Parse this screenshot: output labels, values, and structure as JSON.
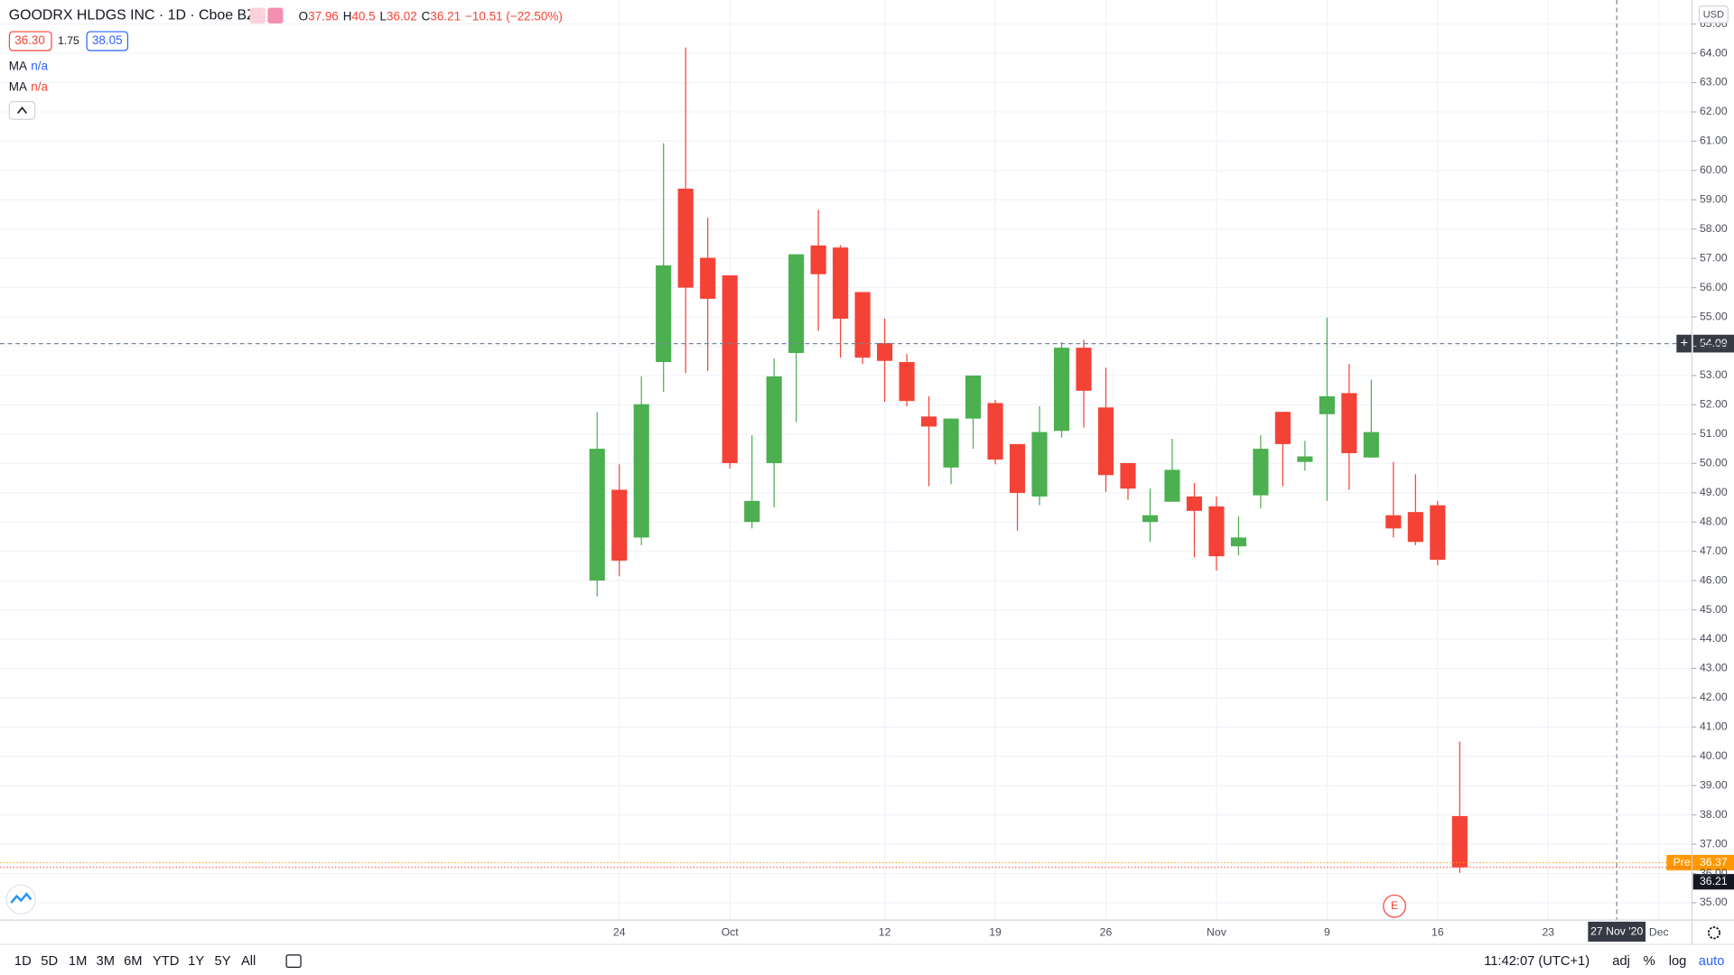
{
  "header": {
    "title": "GOODRX HLDGS INC · 1D · Cboe BZX",
    "ohlc_labels": [
      "O",
      "H",
      "L",
      "C"
    ],
    "change": "−10.51 (−22.50%)",
    "bid": "36.30",
    "spread": "1.75",
    "ask": "38.05",
    "indicators": [
      {
        "name": "MA",
        "value": "n/a"
      },
      {
        "name": "MA",
        "value": "n/a"
      }
    ]
  },
  "chart_data": {
    "type": "candlestick",
    "up_color": "#4caf50",
    "down_color": "#f44336",
    "grid": true,
    "categories": [
      null,
      "24",
      null,
      null,
      null,
      null,
      "Oct",
      null,
      null,
      null,
      null,
      null,
      null,
      "12",
      null,
      null,
      null,
      null,
      "19",
      null,
      null,
      null,
      null,
      "26",
      null,
      null,
      null,
      null,
      "Nov",
      null,
      null,
      null,
      null,
      "9",
      null,
      null,
      null,
      null,
      "16",
      null,
      null,
      null,
      null,
      "23",
      null,
      null,
      null,
      null,
      "Dec"
    ],
    "open": [
      46.0,
      49.1,
      47.47,
      53.46,
      59.38,
      57.02,
      56.42,
      48.0,
      50.01,
      53.77,
      57.44,
      57.37,
      55.85,
      54.11,
      53.46,
      51.6,
      49.86,
      51.53,
      52.06,
      50.66,
      48.87,
      51.11,
      53.95,
      51.91,
      50.01,
      48.0,
      48.69,
      48.87,
      48.53,
      47.17,
      48.91,
      51.76,
      50.05,
      51.68,
      52.4,
      50.2,
      48.23,
      48.34,
      48.57,
      37.96,
      null,
      null,
      null,
      null,
      null,
      null,
      null,
      null,
      null
    ],
    "high": [
      51.76,
      49.97,
      52.97,
      60.93,
      64.2,
      58.39,
      56.42,
      50.96,
      53.58,
      57.14,
      58.66,
      57.45,
      55.85,
      54.94,
      53.73,
      52.29,
      51.53,
      53.0,
      52.17,
      50.66,
      51.95,
      54.14,
      54.22,
      53.27,
      50.01,
      49.14,
      50.84,
      49.33,
      48.87,
      48.19,
      50.96,
      51.76,
      50.77,
      54.98,
      53.39,
      52.86,
      50.05,
      49.63,
      48.72,
      40.5,
      null,
      null,
      null,
      null,
      null,
      null,
      null,
      null,
      null
    ],
    "low": [
      45.46,
      46.15,
      47.21,
      52.44,
      53.08,
      53.16,
      49.82,
      47.78,
      48.5,
      51.41,
      54.52,
      53.61,
      53.39,
      52.1,
      51.95,
      49.22,
      49.29,
      50.5,
      49.97,
      47.7,
      48.57,
      50.88,
      51.22,
      49.03,
      48.76,
      47.32,
      48.69,
      46.79,
      46.34,
      46.87,
      48.46,
      49.22,
      49.75,
      48.72,
      49.1,
      50.2,
      47.47,
      47.21,
      46.52,
      36.02,
      null,
      null,
      null,
      null,
      null,
      null,
      null,
      null,
      null
    ],
    "close": [
      50.5,
      46.68,
      52.02,
      56.76,
      56.0,
      55.62,
      50.01,
      48.72,
      52.97,
      57.14,
      56.46,
      54.94,
      53.61,
      53.5,
      52.13,
      51.26,
      51.53,
      53.0,
      50.13,
      48.99,
      51.07,
      53.95,
      52.48,
      49.6,
      49.14,
      48.23,
      49.78,
      48.38,
      46.83,
      47.47,
      50.5,
      50.66,
      50.24,
      52.29,
      50.35,
      51.07,
      47.78,
      47.32,
      46.71,
      36.21,
      null,
      null,
      null,
      null,
      null,
      null,
      null,
      null,
      null
    ],
    "ylim": [
      34.43,
      65.82
    ],
    "yticks": [
      {
        "value": 35,
        "label": "35.00"
      },
      {
        "value": 36,
        "label": "36.00"
      },
      {
        "value": 37,
        "label": "37.00"
      },
      {
        "value": 38,
        "label": "38.00"
      },
      {
        "value": 39,
        "label": "39.00"
      },
      {
        "value": 40,
        "label": "40.00"
      },
      {
        "value": 41,
        "label": "41.00"
      },
      {
        "value": 42,
        "label": "42.00"
      },
      {
        "value": 43,
        "label": "43.00"
      },
      {
        "value": 44,
        "label": "44.00"
      },
      {
        "value": 45,
        "label": "45.00"
      },
      {
        "value": 46,
        "label": "46.00"
      },
      {
        "value": 47,
        "label": "47.00"
      },
      {
        "value": 48,
        "label": "48.00"
      },
      {
        "value": 49,
        "label": "49.00"
      },
      {
        "value": 50,
        "label": "50.00"
      },
      {
        "value": 51,
        "label": "51.00"
      },
      {
        "value": 52,
        "label": "52.00"
      },
      {
        "value": 53,
        "label": "53.00"
      },
      {
        "value": 54,
        "label": "54.00"
      },
      {
        "value": 55,
        "label": "55.00"
      },
      {
        "value": 56,
        "label": "56.00"
      },
      {
        "value": 57,
        "label": "57.00"
      },
      {
        "value": 58,
        "label": "58.00"
      },
      {
        "value": 59,
        "label": "59.00"
      },
      {
        "value": 60,
        "label": "60.00"
      },
      {
        "value": 61,
        "label": "61.00"
      },
      {
        "value": 62,
        "label": "62.00"
      },
      {
        "value": 63,
        "label": "63.00"
      },
      {
        "value": 64,
        "label": "64.00"
      },
      {
        "value": 65,
        "label": "65.00"
      }
    ],
    "currency": "USD",
    "crosshair": {
      "price": 54.09,
      "date": "27 Nov '20"
    },
    "premarket": {
      "label": "Pre",
      "value": 36.37
    },
    "earnings": "E"
  },
  "toolbar": {
    "ranges": [
      "1D",
      "5D",
      "1M",
      "3M",
      "6M",
      "YTD",
      "1Y",
      "5Y",
      "All"
    ],
    "time": "11:42:07 (UTC+1)",
    "options": [
      "adj",
      "%",
      "log",
      "auto"
    ]
  }
}
